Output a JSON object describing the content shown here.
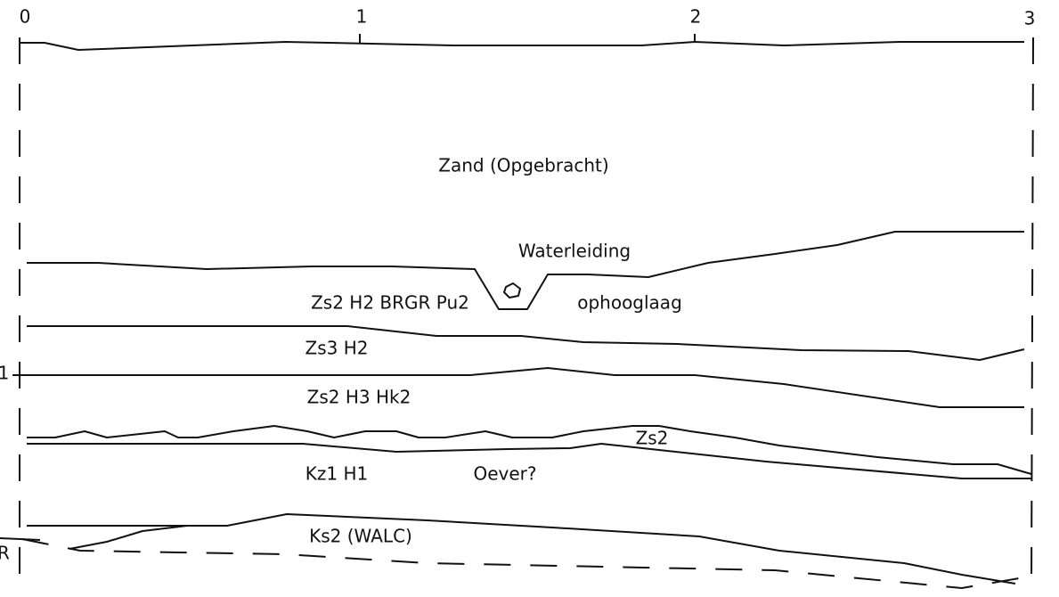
{
  "scale_labels": [
    "0",
    "1",
    "2",
    "3"
  ],
  "depth_label": "1",
  "edge_label": "R",
  "layers": [
    "Zand (Opgebracht)",
    "Zs2 H2 BRGR Pu2",
    "Zs3 H2",
    "Zs2 H3 Hk2",
    "Zs2",
    "Kz1 H1",
    "Ks2 (WALC)"
  ],
  "annotations": [
    "Waterleiding",
    "ophooglaag",
    "Oever?"
  ]
}
